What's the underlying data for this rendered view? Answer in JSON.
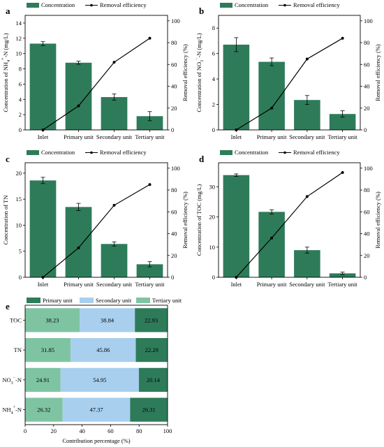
{
  "colors": {
    "bar": "#2e7b5a",
    "line": "#000000",
    "primary": "#2e7b5a",
    "secondary": "#a9cfee",
    "tertiary": "#7fc4a2"
  },
  "chart_data": [
    {
      "id": "a",
      "type": "bar",
      "panel_label": "a",
      "legend": {
        "bar_label": "Concentration",
        "line_label": "Removal efficiency",
        "placement": "top-left"
      },
      "categories": [
        "Inlet",
        "Primary unit",
        "Secondary unit",
        "Tertiary unit"
      ],
      "ylabel_parts": [
        "Concentration of NH",
        "4",
        "+",
        "-N (mg/L)"
      ],
      "y2label": "Removal efficiency (%)",
      "ylim": [
        0,
        15
      ],
      "yticks": [
        0,
        2,
        4,
        6,
        8,
        10,
        12,
        14
      ],
      "y2lim": [
        0,
        105
      ],
      "y2ticks": [
        0,
        20,
        40,
        60,
        80,
        100
      ],
      "series": [
        {
          "kind": "bar",
          "values": [
            11.3,
            8.8,
            4.3,
            1.8
          ],
          "errors": [
            0.25,
            0.2,
            0.4,
            0.6
          ]
        },
        {
          "kind": "line",
          "values": [
            0,
            22,
            62,
            84
          ]
        }
      ]
    },
    {
      "id": "b",
      "type": "bar",
      "panel_label": "b",
      "legend": {
        "bar_label": "Concentration",
        "line_label": "Removal efficiency",
        "placement": "top-left"
      },
      "categories": [
        "Inlet",
        "Primary unit",
        "Secondary unit",
        "Tertiary unit"
      ],
      "ylabel_parts": [
        "Concentration of NO",
        "3",
        "−",
        "-N (mg/L)"
      ],
      "y2label": "Removal efficiency (%)",
      "ylim": [
        0,
        9
      ],
      "yticks": [
        0,
        2,
        4,
        6,
        8
      ],
      "y2lim": [
        0,
        105
      ],
      "y2ticks": [
        0,
        20,
        40,
        60,
        80,
        100
      ],
      "series": [
        {
          "kind": "bar",
          "values": [
            6.7,
            5.35,
            2.35,
            1.25
          ],
          "errors": [
            0.55,
            0.3,
            0.35,
            0.25
          ]
        },
        {
          "kind": "line",
          "values": [
            0,
            20,
            65,
            84
          ]
        }
      ]
    },
    {
      "id": "c",
      "type": "bar",
      "panel_label": "c",
      "legend": {
        "bar_label": "Concentration",
        "line_label": "Removal efficiency",
        "placement": "top-left"
      },
      "categories": [
        "Inlet",
        "Primary unit",
        "Secondary unit",
        "Tertiary unit"
      ],
      "ylabel_parts": [
        "Concentration of TN",
        "",
        "",
        ""
      ],
      "y2label": "Removal efficiency (%)",
      "ylim": [
        0,
        22
      ],
      "yticks": [
        0,
        5,
        10,
        15,
        20
      ],
      "y2lim": [
        0,
        105
      ],
      "y2ticks": [
        0,
        20,
        40,
        60,
        80,
        100
      ],
      "series": [
        {
          "kind": "bar",
          "values": [
            18.6,
            13.5,
            6.4,
            2.5
          ],
          "errors": [
            0.6,
            0.7,
            0.4,
            0.5
          ]
        },
        {
          "kind": "line",
          "values": [
            0,
            27,
            66,
            85
          ]
        }
      ]
    },
    {
      "id": "d",
      "type": "bar",
      "panel_label": "d",
      "legend": {
        "bar_label": "Concentration",
        "line_label": "Removal efficiency",
        "placement": "top-left"
      },
      "categories": [
        "Inlet",
        "Primary unit",
        "Secondary unit",
        "Tertiary unit"
      ],
      "ylabel_parts": [
        "Concentration of TOC (mg/L)",
        "",
        "",
        ""
      ],
      "y2label": "Removal efficiency (%)",
      "ylim": [
        0,
        38
      ],
      "yticks": [
        0,
        10,
        20,
        30
      ],
      "y2lim": [
        0,
        105
      ],
      "y2ticks": [
        0,
        20,
        40,
        60,
        80,
        100
      ],
      "series": [
        {
          "kind": "bar",
          "values": [
            33.9,
            21.7,
            9.0,
            1.3
          ],
          "errors": [
            0.4,
            0.7,
            1.0,
            0.4
          ]
        },
        {
          "kind": "line",
          "values": [
            0,
            36,
            74,
            96
          ]
        }
      ]
    },
    {
      "id": "e",
      "type": "bar",
      "stacked": true,
      "orientation": "horizontal",
      "panel_label": "e",
      "legend": {
        "entries": [
          "Primary unit",
          "Secondary unit",
          "Tertiary unit"
        ],
        "placement": "top"
      },
      "categories": [
        "TOC",
        "TN",
        "NO3−-N",
        "NH4+-N"
      ],
      "category_parts": [
        [
          "TOC",
          "",
          ""
        ],
        [
          "TN",
          "",
          ""
        ],
        [
          "NO",
          "3",
          "−"
        ],
        [
          "NH",
          "4",
          "+"
        ]
      ],
      "category_suffix": [
        "",
        "",
        "-N",
        "-N"
      ],
      "xlabel": "Contribution percentage (%)",
      "xlim": [
        0,
        100
      ],
      "xticks": [
        0,
        20,
        40,
        60,
        80,
        100
      ],
      "series": [
        {
          "name": "Tertiary unit",
          "values": [
            38.23,
            31.85,
            24.91,
            26.32
          ]
        },
        {
          "name": "Secondary unit",
          "values": [
            38.84,
            45.86,
            54.95,
            47.37
          ]
        },
        {
          "name": "Primary unit",
          "values": [
            22.93,
            22.29,
            20.14,
            26.31
          ]
        }
      ]
    }
  ]
}
